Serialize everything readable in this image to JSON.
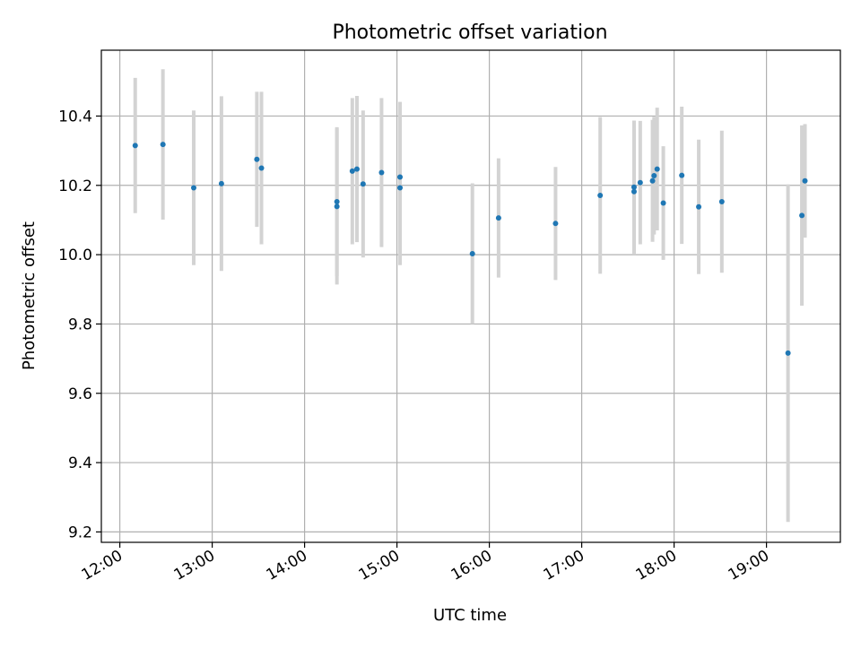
{
  "chart_data": {
    "type": "scatter",
    "title": "Photometric offset variation",
    "xlabel": "UTC time",
    "ylabel": "Photometric offset",
    "x_ticks": [
      "12:00",
      "13:00",
      "14:00",
      "15:00",
      "16:00",
      "17:00",
      "18:00",
      "19:00"
    ],
    "y_ticks": [
      "9.2",
      "9.4",
      "9.6",
      "9.8",
      "10.0",
      "10.2",
      "10.4"
    ],
    "xlim": [
      "11:48",
      "19:48"
    ],
    "ylim": [
      9.17,
      10.59
    ],
    "grid": true,
    "colors": {
      "point": "#1f77b4",
      "errorbar": "#d3d3d3",
      "grid": "#b0b0b0"
    },
    "series": [
      {
        "points": [
          {
            "x": "12:10",
            "y": 10.315,
            "err": 0.195
          },
          {
            "x": "12:28",
            "y": 10.318,
            "err": 0.217
          },
          {
            "x": "12:48",
            "y": 10.193,
            "err": 0.223
          },
          {
            "x": "13:06",
            "y": 10.205,
            "err": 0.252
          },
          {
            "x": "13:29",
            "y": 10.275,
            "err": 0.195
          },
          {
            "x": "13:32",
            "y": 10.25,
            "err": 0.22
          },
          {
            "x": "14:21",
            "y": 10.153,
            "err": 0.215
          },
          {
            "x": "14:21",
            "y": 10.139,
            "err": 0.225
          },
          {
            "x": "14:31",
            "y": 10.241,
            "err": 0.211
          },
          {
            "x": "14:34",
            "y": 10.247,
            "err": 0.211
          },
          {
            "x": "14:38",
            "y": 10.204,
            "err": 0.212
          },
          {
            "x": "14:50",
            "y": 10.237,
            "err": 0.215
          },
          {
            "x": "15:02",
            "y": 10.224,
            "err": 0.217
          },
          {
            "x": "15:02",
            "y": 10.193,
            "err": 0.223
          },
          {
            "x": "15:49",
            "y": 10.003,
            "err": 0.203
          },
          {
            "x": "16:06",
            "y": 10.106,
            "err": 0.172
          },
          {
            "x": "16:43",
            "y": 10.09,
            "err": 0.163
          },
          {
            "x": "17:12",
            "y": 10.171,
            "err": 0.226
          },
          {
            "x": "17:34",
            "y": 10.195,
            "err": 0.192
          },
          {
            "x": "17:34",
            "y": 10.182,
            "err": 0.182
          },
          {
            "x": "17:38",
            "y": 10.208,
            "err": 0.178
          },
          {
            "x": "17:46",
            "y": 10.213,
            "err": 0.176
          },
          {
            "x": "17:47",
            "y": 10.228,
            "err": 0.17
          },
          {
            "x": "17:49",
            "y": 10.247,
            "err": 0.177
          },
          {
            "x": "17:53",
            "y": 10.149,
            "err": 0.164
          },
          {
            "x": "18:05",
            "y": 10.229,
            "err": 0.198
          },
          {
            "x": "18:16",
            "y": 10.138,
            "err": 0.194
          },
          {
            "x": "18:31",
            "y": 10.153,
            "err": 0.205
          },
          {
            "x": "19:14",
            "y": 9.716,
            "err": 0.487
          },
          {
            "x": "19:23",
            "y": 10.113,
            "err": 0.26
          },
          {
            "x": "19:25",
            "y": 10.213,
            "err": 0.164
          }
        ]
      }
    ]
  }
}
